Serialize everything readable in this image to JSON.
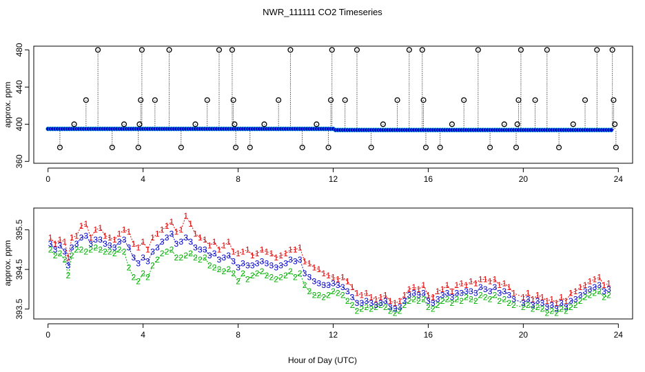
{
  "title": "NWR_111111  CO2 Timeseries",
  "xlabel": "Hour of Day (UTC)",
  "colors": {
    "ser1": "#e00000",
    "ser2": "#00b000",
    "ser3": "#0000cc",
    "raw": "#000000",
    "mean": "#00bcd4"
  },
  "chart_data": [
    {
      "type": "scatter",
      "title": "NWR_111111  CO2 Timeseries",
      "xlabel": "",
      "ylabel": "approx. ppm",
      "xlim": [
        -0.6,
        24.6
      ],
      "ylim": [
        358,
        484
      ],
      "xticks": [
        0,
        4,
        8,
        12,
        16,
        20,
        24
      ],
      "yticks": [
        360,
        400,
        440,
        480
      ],
      "baseline": 395,
      "baseline_late": 393.8,
      "spikes": [
        {
          "x": 0.5,
          "y": 375
        },
        {
          "x": 1.1,
          "y": 400
        },
        {
          "x": 1.6,
          "y": 426
        },
        {
          "x": 2.1,
          "y": 480
        },
        {
          "x": 2.7,
          "y": 375
        },
        {
          "x": 3.2,
          "y": 400
        },
        {
          "x": 3.8,
          "y": 375
        },
        {
          "x": 3.85,
          "y": 400
        },
        {
          "x": 3.9,
          "y": 426
        },
        {
          "x": 3.95,
          "y": 480
        },
        {
          "x": 4.5,
          "y": 426
        },
        {
          "x": 5.1,
          "y": 480
        },
        {
          "x": 5.6,
          "y": 375
        },
        {
          "x": 6.2,
          "y": 400
        },
        {
          "x": 6.7,
          "y": 426
        },
        {
          "x": 7.2,
          "y": 480
        },
        {
          "x": 7.75,
          "y": 480
        },
        {
          "x": 7.8,
          "y": 426
        },
        {
          "x": 7.85,
          "y": 400
        },
        {
          "x": 7.9,
          "y": 375
        },
        {
          "x": 8.5,
          "y": 375
        },
        {
          "x": 9.1,
          "y": 400
        },
        {
          "x": 9.7,
          "y": 426
        },
        {
          "x": 10.2,
          "y": 480
        },
        {
          "x": 10.7,
          "y": 375
        },
        {
          "x": 11.3,
          "y": 400
        },
        {
          "x": 11.8,
          "y": 375
        },
        {
          "x": 11.9,
          "y": 426
        },
        {
          "x": 11.95,
          "y": 480
        },
        {
          "x": 12.5,
          "y": 426
        },
        {
          "x": 13.0,
          "y": 480
        },
        {
          "x": 13.6,
          "y": 375
        },
        {
          "x": 14.1,
          "y": 400
        },
        {
          "x": 14.7,
          "y": 426
        },
        {
          "x": 15.2,
          "y": 480
        },
        {
          "x": 15.75,
          "y": 480
        },
        {
          "x": 15.8,
          "y": 426
        },
        {
          "x": 15.9,
          "y": 375
        },
        {
          "x": 16.5,
          "y": 375
        },
        {
          "x": 17.0,
          "y": 400
        },
        {
          "x": 17.5,
          "y": 426
        },
        {
          "x": 18.1,
          "y": 480
        },
        {
          "x": 18.6,
          "y": 375
        },
        {
          "x": 19.2,
          "y": 400
        },
        {
          "x": 19.7,
          "y": 375
        },
        {
          "x": 19.75,
          "y": 400
        },
        {
          "x": 19.8,
          "y": 426
        },
        {
          "x": 19.9,
          "y": 480
        },
        {
          "x": 20.5,
          "y": 426
        },
        {
          "x": 21.0,
          "y": 480
        },
        {
          "x": 21.5,
          "y": 375
        },
        {
          "x": 22.1,
          "y": 400
        },
        {
          "x": 22.6,
          "y": 426
        },
        {
          "x": 23.1,
          "y": 480
        },
        {
          "x": 23.75,
          "y": 480
        },
        {
          "x": 23.8,
          "y": 426
        },
        {
          "x": 23.85,
          "y": 400
        },
        {
          "x": 23.9,
          "y": 375
        }
      ]
    },
    {
      "type": "line",
      "title": "",
      "xlabel": "Hour of Day (UTC)",
      "ylabel": "approx. ppm",
      "xlim": [
        -0.6,
        24.6
      ],
      "ylim": [
        393.25,
        396.05
      ],
      "xticks": [
        0,
        4,
        8,
        12,
        16,
        20,
        24
      ],
      "yticks": [
        393.5,
        394.5,
        395.5
      ],
      "point_symbols": [
        "1",
        "2",
        "3"
      ],
      "series": [
        {
          "name": "1",
          "x": [
            0.1,
            0.3,
            0.5,
            0.7,
            0.85,
            1.0,
            1.2,
            1.4,
            1.6,
            1.8,
            2.0,
            2.2,
            2.4,
            2.6,
            2.8,
            3.0,
            3.2,
            3.4,
            3.6,
            3.8,
            4.0,
            4.2,
            4.4,
            4.6,
            4.8,
            5.0,
            5.2,
            5.4,
            5.6,
            5.8,
            6.0,
            6.2,
            6.4,
            6.6,
            6.8,
            7.0,
            7.2,
            7.4,
            7.6,
            7.8,
            8.0,
            8.2,
            8.4,
            8.6,
            8.8,
            9.0,
            9.2,
            9.4,
            9.6,
            9.8,
            10.0,
            10.2,
            10.4,
            10.6,
            10.8,
            11.0,
            11.2,
            11.4,
            11.6,
            11.8,
            12.0,
            12.2,
            12.4,
            12.6,
            12.8,
            13.0,
            13.2,
            13.4,
            13.6,
            13.8,
            14.0,
            14.2,
            14.4,
            14.6,
            14.8,
            15.0,
            15.2,
            15.4,
            15.6,
            15.8,
            16.0,
            16.2,
            16.4,
            16.6,
            16.8,
            17.0,
            17.2,
            17.4,
            17.6,
            17.8,
            18.0,
            18.2,
            18.4,
            18.6,
            18.8,
            19.0,
            19.2,
            19.4,
            19.6,
            20.0,
            20.2,
            20.4,
            20.6,
            20.8,
            21.0,
            21.2,
            21.4,
            21.6,
            21.8,
            22.0,
            22.2,
            22.4,
            22.6,
            22.8,
            23.0,
            23.2,
            23.4,
            23.6
          ],
          "y": [
            395.3,
            395.15,
            395.25,
            395.2,
            394.8,
            395.3,
            395.35,
            395.6,
            395.65,
            395.3,
            395.5,
            395.55,
            395.35,
            395.3,
            395.25,
            395.4,
            395.5,
            395.45,
            395.15,
            395.05,
            395.2,
            395.0,
            395.3,
            395.4,
            395.5,
            395.6,
            395.7,
            395.45,
            395.5,
            395.85,
            395.65,
            395.4,
            395.3,
            395.25,
            395.1,
            395.2,
            395.0,
            395.1,
            395.2,
            394.95,
            394.9,
            394.95,
            395.0,
            394.85,
            394.9,
            395.0,
            394.95,
            394.9,
            394.8,
            394.85,
            394.9,
            395.0,
            395.0,
            395.05,
            394.7,
            394.65,
            394.55,
            394.5,
            394.4,
            394.35,
            394.3,
            394.25,
            394.3,
            394.2,
            394.05,
            393.9,
            393.85,
            393.9,
            393.8,
            393.75,
            393.8,
            393.85,
            393.7,
            393.65,
            393.7,
            393.85,
            394.0,
            394.05,
            394.0,
            394.1,
            393.85,
            393.8,
            393.95,
            394.0,
            394.1,
            393.95,
            394.1,
            394.15,
            394.1,
            394.2,
            394.15,
            394.25,
            394.25,
            394.2,
            394.25,
            394.1,
            394.15,
            394.05,
            393.9,
            393.8,
            393.9,
            393.75,
            393.85,
            393.8,
            393.7,
            393.75,
            393.65,
            393.8,
            393.7,
            393.9,
            393.95,
            394.05,
            394.1,
            394.2,
            394.25,
            394.3,
            394.1,
            394.15
          ]
        },
        {
          "name": "2",
          "x": [
            0.1,
            0.3,
            0.5,
            0.7,
            0.85,
            1.0,
            1.2,
            1.4,
            1.6,
            1.8,
            2.0,
            2.2,
            2.4,
            2.6,
            2.8,
            3.0,
            3.2,
            3.4,
            3.6,
            3.8,
            4.0,
            4.2,
            4.4,
            4.6,
            4.8,
            5.0,
            5.2,
            5.4,
            5.6,
            5.8,
            6.0,
            6.2,
            6.4,
            6.6,
            6.8,
            7.0,
            7.2,
            7.4,
            7.6,
            7.8,
            8.0,
            8.2,
            8.4,
            8.6,
            8.8,
            9.0,
            9.2,
            9.4,
            9.6,
            9.8,
            10.0,
            10.2,
            10.4,
            10.6,
            10.8,
            11.0,
            11.2,
            11.4,
            11.6,
            11.8,
            12.0,
            12.2,
            12.4,
            12.6,
            12.8,
            13.0,
            13.2,
            13.4,
            13.6,
            13.8,
            14.0,
            14.2,
            14.4,
            14.6,
            14.8,
            15.0,
            15.2,
            15.4,
            15.6,
            15.8,
            16.0,
            16.2,
            16.4,
            16.6,
            16.8,
            17.0,
            17.2,
            17.4,
            17.6,
            17.8,
            18.0,
            18.2,
            18.4,
            18.6,
            18.8,
            19.0,
            19.2,
            19.4,
            19.6,
            20.0,
            20.2,
            20.4,
            20.6,
            20.8,
            21.0,
            21.2,
            21.4,
            21.6,
            21.8,
            22.0,
            22.2,
            22.4,
            22.6,
            22.8,
            23.0,
            23.2,
            23.4,
            23.6
          ],
          "y": [
            395.0,
            394.85,
            394.9,
            394.75,
            394.35,
            394.85,
            395.0,
            395.0,
            394.95,
            395.0,
            395.05,
            395.0,
            394.95,
            394.95,
            394.9,
            395.0,
            394.95,
            394.55,
            394.3,
            394.2,
            394.4,
            394.3,
            394.6,
            394.75,
            394.9,
            394.95,
            395.0,
            394.8,
            394.8,
            394.85,
            394.9,
            394.8,
            394.75,
            394.8,
            394.6,
            394.55,
            394.5,
            394.45,
            394.5,
            394.4,
            394.2,
            394.4,
            394.25,
            394.35,
            394.4,
            394.45,
            394.35,
            394.3,
            394.25,
            394.3,
            394.35,
            394.45,
            394.3,
            394.4,
            394.1,
            393.95,
            393.85,
            393.85,
            393.8,
            393.85,
            393.95,
            393.9,
            393.85,
            393.7,
            393.6,
            393.45,
            393.5,
            393.55,
            393.5,
            393.55,
            393.6,
            393.55,
            393.45,
            393.4,
            393.45,
            393.6,
            393.7,
            393.75,
            393.7,
            393.75,
            393.55,
            393.5,
            393.6,
            393.7,
            393.75,
            393.65,
            393.75,
            393.7,
            393.8,
            393.75,
            393.7,
            393.85,
            393.8,
            393.75,
            393.85,
            393.7,
            393.75,
            393.65,
            393.6,
            393.55,
            393.6,
            393.5,
            393.55,
            393.5,
            393.4,
            393.45,
            393.4,
            393.5,
            393.45,
            393.55,
            393.6,
            393.7,
            393.8,
            393.85,
            393.9,
            393.95,
            393.8,
            393.85
          ]
        },
        {
          "name": "3",
          "x": [
            0.1,
            0.3,
            0.5,
            0.7,
            0.85,
            1.0,
            1.2,
            1.4,
            1.6,
            1.8,
            2.0,
            2.2,
            2.4,
            2.6,
            2.8,
            3.0,
            3.2,
            3.4,
            3.6,
            3.8,
            4.0,
            4.2,
            4.4,
            4.6,
            4.8,
            5.0,
            5.2,
            5.4,
            5.6,
            5.8,
            6.0,
            6.2,
            6.4,
            6.6,
            6.8,
            7.0,
            7.2,
            7.4,
            7.6,
            7.8,
            8.0,
            8.2,
            8.4,
            8.6,
            8.8,
            9.0,
            9.2,
            9.4,
            9.6,
            9.8,
            10.0,
            10.2,
            10.4,
            10.6,
            10.8,
            11.0,
            11.2,
            11.4,
            11.6,
            11.8,
            12.0,
            12.2,
            12.4,
            12.6,
            12.8,
            13.0,
            13.2,
            13.4,
            13.6,
            13.8,
            14.0,
            14.2,
            14.4,
            14.6,
            14.8,
            15.0,
            15.2,
            15.4,
            15.6,
            15.8,
            16.0,
            16.2,
            16.4,
            16.6,
            16.8,
            17.0,
            17.2,
            17.4,
            17.6,
            17.8,
            18.0,
            18.2,
            18.4,
            18.6,
            18.8,
            19.0,
            19.2,
            19.4,
            19.6,
            20.0,
            20.2,
            20.4,
            20.6,
            20.8,
            21.0,
            21.2,
            21.4,
            21.6,
            21.8,
            22.0,
            22.2,
            22.4,
            22.6,
            22.8,
            23.0,
            23.2,
            23.4,
            23.6
          ],
          "y": [
            395.15,
            395.0,
            395.1,
            394.95,
            394.6,
            395.05,
            395.15,
            395.3,
            395.35,
            395.15,
            395.25,
            395.25,
            395.15,
            395.1,
            395.05,
            395.2,
            395.25,
            395.05,
            394.8,
            394.65,
            394.8,
            394.7,
            394.95,
            395.05,
            395.2,
            395.3,
            395.4,
            395.15,
            395.2,
            395.3,
            395.2,
            395.05,
            395.0,
            395.0,
            394.85,
            394.9,
            394.75,
            394.8,
            394.85,
            394.7,
            394.55,
            394.65,
            394.6,
            394.6,
            394.65,
            394.7,
            394.65,
            394.6,
            394.55,
            394.6,
            394.65,
            394.75,
            394.7,
            394.75,
            394.4,
            394.3,
            394.2,
            394.15,
            394.1,
            394.1,
            394.15,
            394.1,
            394.05,
            393.95,
            393.8,
            393.65,
            393.65,
            393.7,
            393.65,
            393.6,
            393.65,
            393.7,
            393.55,
            393.5,
            393.55,
            393.7,
            393.85,
            393.9,
            393.85,
            393.9,
            393.7,
            393.65,
            393.75,
            393.85,
            393.9,
            393.8,
            393.9,
            393.9,
            393.95,
            393.95,
            393.9,
            394.05,
            394.0,
            393.95,
            394.05,
            393.9,
            393.95,
            393.85,
            393.75,
            393.65,
            393.75,
            393.6,
            393.7,
            393.65,
            393.55,
            393.6,
            393.5,
            393.65,
            393.55,
            393.7,
            393.75,
            393.85,
            393.95,
            394.0,
            394.05,
            394.1,
            393.95,
            394.0
          ]
        }
      ]
    }
  ]
}
